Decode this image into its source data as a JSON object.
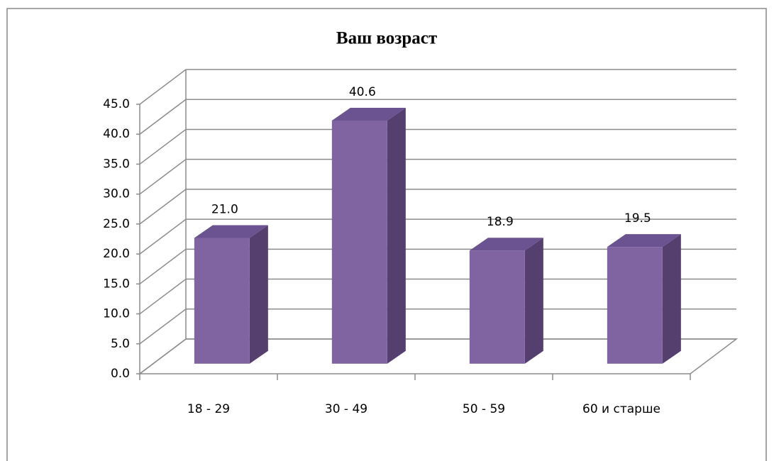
{
  "chart_data": {
    "type": "bar3d",
    "title": "Ваш возраст",
    "categories": [
      "18 - 29",
      "30 - 49",
      "50 - 59",
      "60 и старше"
    ],
    "values": [
      21.0,
      40.6,
      18.9,
      19.5
    ],
    "value_labels": [
      "21.0",
      "40.6",
      "18.9",
      "19.5"
    ],
    "color": "#8064a2",
    "ylim": [
      0,
      45
    ],
    "yticks": [
      {
        "value": 0,
        "label": "0.0"
      },
      {
        "value": 5,
        "label": "5.0"
      },
      {
        "value": 10,
        "label": "10.0"
      },
      {
        "value": 15,
        "label": "15.0"
      },
      {
        "value": 20,
        "label": "20.0"
      },
      {
        "value": 25,
        "label": "25.0"
      },
      {
        "value": 30,
        "label": "30.0"
      },
      {
        "value": 35,
        "label": "35.0"
      },
      {
        "value": 40,
        "label": "40.0"
      },
      {
        "value": 45,
        "label": "45.0"
      }
    ],
    "grid": true
  }
}
